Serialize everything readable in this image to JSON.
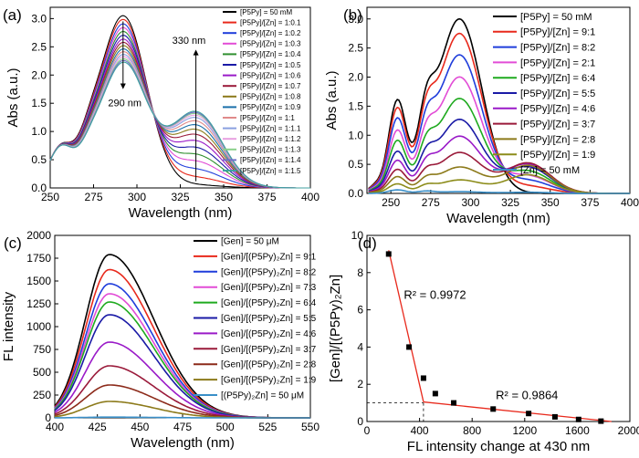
{
  "chart_data": [
    {
      "panel": "(a)",
      "type": "line",
      "xlabel": "Wavelength (nm)",
      "ylabel": "Abs (a.u.)",
      "xlim": [
        250,
        400
      ],
      "ylim": [
        0,
        3.2
      ],
      "xticks": [
        250,
        275,
        300,
        325,
        350,
        375,
        400
      ],
      "yticks": [
        0.0,
        0.5,
        1.0,
        1.5,
        2.0,
        2.5,
        3.0
      ],
      "legend_position": "top-right",
      "annotations": [
        {
          "text": "290 nm",
          "x": 293,
          "y": 1.45
        },
        {
          "text": "330 nm",
          "x": 330,
          "y": 2.55
        }
      ],
      "series": [
        {
          "name": "[P5Py] = 50 mM",
          "color": "#000000",
          "peak": 3.05,
          "band2": 0.05
        },
        {
          "name": "[P5Py]/[Zn] = 1:0.1",
          "color": "#e8291c",
          "peak": 2.98,
          "band2": 0.18
        },
        {
          "name": "[P5Py]/[Zn] = 1:0.2",
          "color": "#1f3ddb",
          "peak": 2.9,
          "band2": 0.32
        },
        {
          "name": "[P5Py]/[Zn] = 1:0.3",
          "color": "#e24cd6",
          "peak": 2.83,
          "band2": 0.46
        },
        {
          "name": "[P5Py]/[Zn] = 1:0.4",
          "color": "#2f8f2f",
          "peak": 2.76,
          "band2": 0.58
        },
        {
          "name": "[P5Py]/[Zn] = 1:0.5",
          "color": "#1a1aa6",
          "peak": 2.69,
          "band2": 0.7
        },
        {
          "name": "[P5Py]/[Zn] = 1:0.6",
          "color": "#9a1ac8",
          "peak": 2.62,
          "band2": 0.82
        },
        {
          "name": "[P5Py]/[Zn] = 1:0.7",
          "color": "#9a1a3a",
          "peak": 2.56,
          "band2": 0.93
        },
        {
          "name": "[P5Py]/[Zn] = 1:0.8",
          "color": "#8c7a1a",
          "peak": 2.5,
          "band2": 1.02
        },
        {
          "name": "[P5Py]/[Zn] = 1:0.9",
          "color": "#1a6faa",
          "peak": 2.44,
          "band2": 1.1
        },
        {
          "name": "[P5Py]/[Zn] = 1:1",
          "color": "#e08a8a",
          "peak": 2.39,
          "band2": 1.17
        },
        {
          "name": "[P5Py]/[Zn] = 1:1.1",
          "color": "#8aa0e0",
          "peak": 2.34,
          "band2": 1.23
        },
        {
          "name": "[P5Py]/[Zn] = 1:1.2",
          "color": "#e8a0e0",
          "peak": 2.3,
          "band2": 1.27
        },
        {
          "name": "[P5Py]/[Zn] = 1:1.3",
          "color": "#8ad08a",
          "peak": 2.26,
          "band2": 1.3
        },
        {
          "name": "[P5Py]/[Zn] = 1:1.4",
          "color": "#7070c8",
          "peak": 2.23,
          "band2": 1.32
        },
        {
          "name": "[P5Py]/[Zn] = 1:1.5",
          "color": "#40a0a0",
          "peak": 2.2,
          "band2": 1.34
        }
      ]
    },
    {
      "panel": "(b)",
      "type": "line",
      "xlabel": "Wavelength (nm)",
      "ylabel": "Abs (a.u.)",
      "xlim": [
        235,
        400
      ],
      "ylim": [
        0,
        3.2
      ],
      "xticks": [
        250,
        275,
        300,
        325,
        350,
        375,
        400
      ],
      "yticks": [
        0.0,
        0.5,
        1.0,
        1.5,
        2.0,
        2.5,
        3.0
      ],
      "legend_position": "top-right",
      "series": [
        {
          "name": "[P5Py] = 50 mM",
          "color": "#000000",
          "peak": 3.0,
          "side": 1.55,
          "band2": 0.0
        },
        {
          "name": "[P5Py]/[Zn] = 9:1",
          "color": "#e8291c",
          "peak": 2.75,
          "side": 1.42,
          "band2": 0.12
        },
        {
          "name": "[P5Py]/[Zn] = 8:2",
          "color": "#1f3ddb",
          "peak": 2.38,
          "side": 1.25,
          "band2": 0.22
        },
        {
          "name": "[P5Py]/[Zn] = 2:1",
          "color": "#e24cd6",
          "peak": 2.0,
          "side": 1.05,
          "band2": 0.3
        },
        {
          "name": "[P5Py]/[Zn] = 6:4",
          "color": "#1faa1f",
          "peak": 1.63,
          "side": 0.88,
          "band2": 0.38
        },
        {
          "name": "[P5Py]/[Zn] = 5:5",
          "color": "#1a1aa6",
          "peak": 1.27,
          "side": 0.7,
          "band2": 0.45
        },
        {
          "name": "[P5Py]/[Zn] = 4:6",
          "color": "#9a1ac8",
          "peak": 0.98,
          "side": 0.55,
          "band2": 0.5
        },
        {
          "name": "[P5Py]/[Zn] = 3:7",
          "color": "#9a1a3a",
          "peak": 0.7,
          "side": 0.4,
          "band2": 0.52
        },
        {
          "name": "[P5Py]/[Zn] = 2:8",
          "color": "#8c7a1a",
          "peak": 0.45,
          "side": 0.28,
          "band2": 0.48
        },
        {
          "name": "[P5Py]/[Zn] = 1:9",
          "color": "#8c8c1a",
          "peak": 0.23,
          "side": 0.16,
          "band2": 0.32
        },
        {
          "name": "[Zn] = 50 mM",
          "color": "#3a8fc8",
          "peak": 0.03,
          "side": 0.06,
          "band2": 0.02
        }
      ]
    },
    {
      "panel": "(c)",
      "type": "line",
      "xlabel": "Wavelength (nm)",
      "ylabel": "FL intensity",
      "xlim": [
        400,
        550
      ],
      "ylim": [
        0,
        2000
      ],
      "xticks": [
        400,
        425,
        450,
        475,
        500,
        525,
        550
      ],
      "yticks": [
        0,
        250,
        500,
        750,
        1000,
        1250,
        1500,
        1750,
        2000
      ],
      "legend_position": "top-right",
      "series": [
        {
          "name": "[Gen] = 50 μM",
          "color": "#000000",
          "peak": 1790
        },
        {
          "name": "[Gen]/[(P5Py)₂Zn] = 9:1",
          "color": "#e8291c",
          "peak": 1625
        },
        {
          "name": "[Gen]/[(P5Py)₂Zn] = 8:2",
          "color": "#1f3ddb",
          "peak": 1470
        },
        {
          "name": "[Gen]/[(P5Py)₂Zn] = 7:3",
          "color": "#e24cd6",
          "peak": 1360
        },
        {
          "name": "[Gen]/[(P5Py)₂Zn] = 6:4",
          "color": "#1faa1f",
          "peak": 1270
        },
        {
          "name": "[Gen]/[(P5Py)₂Zn] = 5:5",
          "color": "#1a1aa6",
          "peak": 1130
        },
        {
          "name": "[Gen]/[(P5Py)₂Zn] = 4:6",
          "color": "#9a1ac8",
          "peak": 830
        },
        {
          "name": "[Gen]/[(P5Py)₂Zn] = 3:7",
          "color": "#9a1a3a",
          "peak": 570
        },
        {
          "name": "[Gen]/[(P5Py)₂Zn] = 2:8",
          "color": "#8c2a1a",
          "peak": 360
        },
        {
          "name": "[Gen]/[(P5Py)₂Zn] = 1:9",
          "color": "#8c7a1a",
          "peak": 180
        },
        {
          "name": "[(P5Py)₂Zn] = 50 μM",
          "color": "#3a8fc8",
          "peak": 8
        }
      ]
    },
    {
      "panel": "(d)",
      "type": "scatter",
      "xlabel": "FL intensity change at 430 nm",
      "ylabel": "[Gen]/[(P5Py)₂Zn]",
      "xlim": [
        0,
        2000
      ],
      "ylim": [
        0,
        10
      ],
      "xticks": [
        0,
        400,
        800,
        1200,
        1600,
        2000
      ],
      "yticks": [
        0,
        2,
        4,
        6,
        8,
        10
      ],
      "points": [
        {
          "x": 165,
          "y": 9
        },
        {
          "x": 320,
          "y": 4
        },
        {
          "x": 430,
          "y": 2.33
        },
        {
          "x": 520,
          "y": 1.5
        },
        {
          "x": 660,
          "y": 1
        },
        {
          "x": 960,
          "y": 0.67
        },
        {
          "x": 1230,
          "y": 0.43
        },
        {
          "x": 1430,
          "y": 0.25
        },
        {
          "x": 1610,
          "y": 0.11
        },
        {
          "x": 1780,
          "y": 0.02
        }
      ],
      "fits": [
        {
          "x": [
            165,
            430
          ],
          "y": [
            9.2,
            1.05
          ],
          "label": "R² = 0.9972",
          "color": "#e8291c"
        },
        {
          "x": [
            430,
            1860
          ],
          "y": [
            1.05,
            0.0
          ],
          "label": "R² = 0.9864",
          "color": "#e8291c"
        }
      ],
      "intersection": {
        "x": 430,
        "y": 1.0
      }
    }
  ]
}
